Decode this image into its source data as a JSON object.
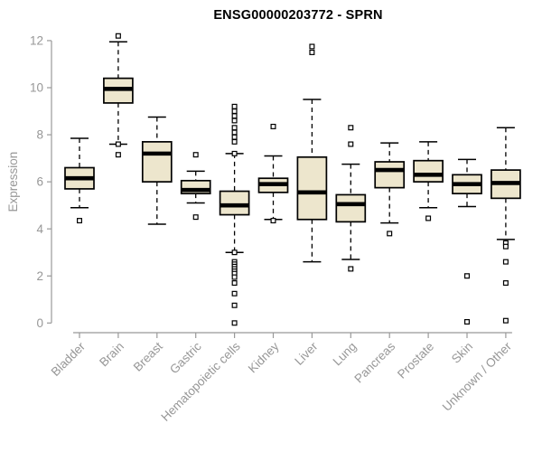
{
  "chart_data": {
    "type": "boxplot",
    "title": "ENSG00000203772 - SPRN",
    "xlabel": "",
    "ylabel": "Expression",
    "ylim": [
      0,
      12
    ],
    "yticks": [
      0,
      2,
      4,
      6,
      8,
      10,
      12
    ],
    "grid": false,
    "legend": "none",
    "categories": [
      "Bladder",
      "Brain",
      "Breast",
      "Gastric",
      "Hematopoietic cells",
      "Kidney",
      "Liver",
      "Lung",
      "Pancreas",
      "Prostate",
      "Skin",
      "Unknown / Other"
    ],
    "series": [
      {
        "category": "Bladder",
        "whisker_low": 4.9,
        "q1": 5.7,
        "median": 6.15,
        "q3": 6.6,
        "whisker_high": 7.85,
        "outliers": [
          4.35
        ]
      },
      {
        "category": "Brain",
        "whisker_low": 7.6,
        "q1": 9.35,
        "median": 9.95,
        "q3": 10.4,
        "whisker_high": 11.95,
        "outliers": [
          12.2,
          7.6,
          7.15
        ]
      },
      {
        "category": "Breast",
        "whisker_low": 4.2,
        "q1": 6.0,
        "median": 7.2,
        "q3": 7.7,
        "whisker_high": 8.75,
        "outliers": []
      },
      {
        "category": "Gastric",
        "whisker_low": 5.1,
        "q1": 5.5,
        "median": 5.65,
        "q3": 6.05,
        "whisker_high": 6.45,
        "outliers": [
          7.15,
          4.5
        ]
      },
      {
        "category": "Hematopoietic cells",
        "whisker_low": 3.0,
        "q1": 4.6,
        "median": 5.0,
        "q3": 5.6,
        "whisker_high": 7.2,
        "outliers": [
          9.2,
          9.0,
          8.8,
          8.6,
          8.3,
          8.1,
          7.9,
          7.7,
          7.2,
          3.0,
          2.6,
          2.5,
          2.4,
          2.3,
          2.2,
          2.1,
          1.95,
          1.7,
          1.25,
          0.75,
          0.0
        ]
      },
      {
        "category": "Kidney",
        "whisker_low": 4.4,
        "q1": 5.55,
        "median": 5.9,
        "q3": 6.15,
        "whisker_high": 7.1,
        "outliers": [
          8.35,
          4.35
        ]
      },
      {
        "category": "Liver",
        "whisker_low": 2.6,
        "q1": 4.4,
        "median": 5.55,
        "q3": 7.05,
        "whisker_high": 9.5,
        "outliers": [
          11.75,
          11.5
        ]
      },
      {
        "category": "Lung",
        "whisker_low": 2.7,
        "q1": 4.3,
        "median": 5.05,
        "q3": 5.45,
        "whisker_high": 6.75,
        "outliers": [
          8.3,
          7.6,
          2.3
        ]
      },
      {
        "category": "Pancreas",
        "whisker_low": 4.25,
        "q1": 5.75,
        "median": 6.5,
        "q3": 6.85,
        "whisker_high": 7.65,
        "outliers": [
          3.8
        ]
      },
      {
        "category": "Prostate",
        "whisker_low": 4.9,
        "q1": 6.0,
        "median": 6.3,
        "q3": 6.9,
        "whisker_high": 7.7,
        "outliers": [
          4.45
        ]
      },
      {
        "category": "Skin",
        "whisker_low": 4.95,
        "q1": 5.5,
        "median": 5.9,
        "q3": 6.3,
        "whisker_high": 6.95,
        "outliers": [
          2.0,
          0.05
        ]
      },
      {
        "category": "Unknown / Other",
        "whisker_low": 3.55,
        "q1": 5.3,
        "median": 5.95,
        "q3": 6.5,
        "whisker_high": 8.3,
        "outliers": [
          3.4,
          3.25,
          2.6,
          1.7,
          0.1
        ]
      }
    ]
  },
  "colors": {
    "box_fill": "#EDE6CD",
    "box_stroke": "#000000",
    "median": "#000000",
    "axis": "#999999",
    "axis_text": "#979797",
    "title": "#000000",
    "background": "#ffffff"
  }
}
